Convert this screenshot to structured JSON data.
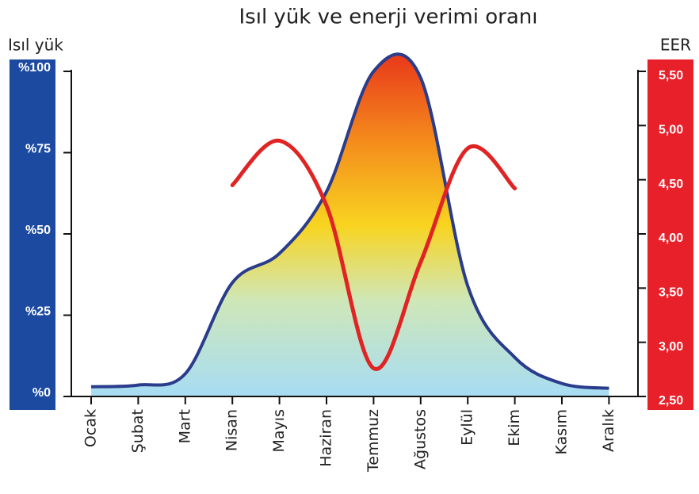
{
  "chart_data": {
    "type": "area-line",
    "title": "Isıl yük ve enerji verimi oranı",
    "y_label": "Isıl yük",
    "y2_label": "EER",
    "categories": [
      "Ocak",
      "Şubat",
      "Mart",
      "Nisan",
      "Mayıs",
      "Haziran",
      "Temmuz",
      "Ağustos",
      "Eylül",
      "Ekim",
      "Kasım",
      "Aralık"
    ],
    "series": [
      {
        "name": "Isıl yük",
        "color": "#2a3c8c",
        "values": [
          3,
          3.5,
          7,
          35,
          44,
          63,
          100,
          98,
          34,
          12,
          4,
          2.5
        ]
      },
      {
        "name": "EER",
        "color": "#e02424",
        "axis": "y2",
        "values": [
          null,
          null,
          null,
          4.45,
          4.86,
          4.26,
          2.76,
          3.74,
          4.79,
          4.42,
          null,
          null
        ]
      }
    ],
    "ylim": [
      0,
      100
    ],
    "yticks": [
      {
        "value": 0,
        "label": "%0"
      },
      {
        "value": 25,
        "label": "%25"
      },
      {
        "value": 50,
        "label": "%50"
      },
      {
        "value": 75,
        "label": "%75"
      },
      {
        "value": 100,
        "label": "%100"
      }
    ],
    "y2lim": [
      2.5,
      5.5
    ],
    "y2ticks": [
      {
        "value": 2.5,
        "label": "2,50"
      },
      {
        "value": 3,
        "label": "3,00"
      },
      {
        "value": 3.5,
        "label": "3,50"
      },
      {
        "value": 4,
        "label": "4,00"
      },
      {
        "value": 4.5,
        "label": "4,50"
      },
      {
        "value": 5,
        "label": "5,00"
      },
      {
        "value": 5.5,
        "label": "5,50"
      }
    ]
  }
}
